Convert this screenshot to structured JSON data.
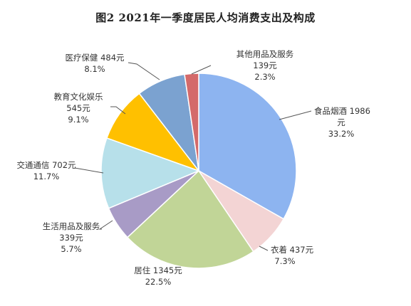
{
  "chart_data": {
    "type": "pie",
    "title": "图2  2021年一季度居民人均消费支出及构成",
    "start_angle_deg": 0,
    "slices": [
      {
        "name": "食品烟酒",
        "value": 1986,
        "unit": "元",
        "percent": "33.2%",
        "color": "#8DB4F0",
        "label_lines": [
          "食品烟酒 1986",
          "元",
          "33.2%"
        ]
      },
      {
        "name": "衣着",
        "value": 437,
        "unit": "元",
        "percent": "7.3%",
        "color": "#F3D4D4",
        "label_lines": [
          "衣着 437元",
          "7.3%"
        ]
      },
      {
        "name": "居住",
        "value": 1345,
        "unit": "元",
        "percent": "22.5%",
        "color": "#C1D597",
        "label_lines": [
          "居住 1345元",
          "22.5%"
        ]
      },
      {
        "name": "生活用品及服务",
        "value": 339,
        "unit": "元",
        "percent": "5.7%",
        "color": "#A89BC6",
        "label_lines": [
          "生活用品及服务",
          "339元",
          "5.7%"
        ]
      },
      {
        "name": "交通通信",
        "value": 702,
        "unit": "元",
        "percent": "11.7%",
        "color": "#B7E0EA",
        "label_lines": [
          "交通通信 702元",
          "11.7%"
        ]
      },
      {
        "name": "教育文化娱乐",
        "value": 545,
        "unit": "元",
        "percent": "9.1%",
        "color": "#FFC000",
        "label_lines": [
          "教育文化娱乐",
          "545元",
          "9.1%"
        ]
      },
      {
        "name": "医疗保健",
        "value": 484,
        "unit": "元",
        "percent": "8.1%",
        "color": "#7BA2D0",
        "label_lines": [
          "医疗保健 484元",
          "8.1%"
        ]
      },
      {
        "name": "其他用品及服务",
        "value": 139,
        "unit": "元",
        "percent": "2.3%",
        "color": "#D46A6A",
        "label_lines": [
          "其他用品及服务",
          "139元",
          "2.3%"
        ]
      }
    ]
  }
}
